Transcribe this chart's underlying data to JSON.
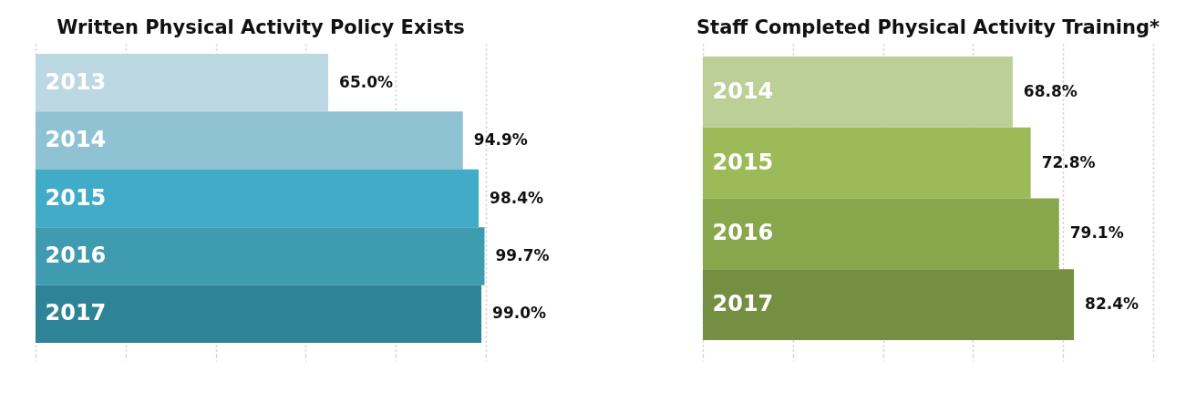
{
  "chart_data": [
    {
      "type": "bar",
      "orientation": "horizontal",
      "title": "Written Physical Activity Policy Exists",
      "categories": [
        "2013",
        "2014",
        "2015",
        "2016",
        "2017"
      ],
      "values": [
        65.0,
        94.9,
        98.4,
        99.7,
        99.0
      ],
      "colors": [
        "#bcd8e3",
        "#8fc3d3",
        "#41abc8",
        "#3f9bb0",
        "#2e8496"
      ],
      "value_labels": [
        "65.0%",
        "94.9%",
        "98.4%",
        "99.7%",
        "99.0%"
      ],
      "xlim": [
        0,
        100
      ],
      "xticks": [
        {
          "value": 0,
          "label": null
        },
        {
          "value": 20,
          "label": null
        },
        {
          "value": 40,
          "label": null
        },
        {
          "value": 60,
          "label": null
        },
        {
          "value": 80,
          "label": null
        },
        {
          "value": 100,
          "label": null
        }
      ],
      "grid": "x",
      "tick_labels": "y"
    },
    {
      "type": "bar",
      "orientation": "horizontal",
      "title": "Staff Completed Physical Activity Training*",
      "categories": [
        "2014",
        "2015",
        "2016",
        "2017"
      ],
      "values": [
        68.8,
        72.8,
        79.1,
        82.4
      ],
      "colors": [
        "#bbcf96",
        "#9cbb58",
        "#88a64c",
        "#748e42"
      ],
      "value_labels": [
        "68.8%",
        "72.8%",
        "79.1%",
        "82.4%"
      ],
      "xlim": [
        0,
        100
      ],
      "xticks": [
        {
          "value": 0,
          "label": null
        },
        {
          "value": 20,
          "label": null
        },
        {
          "value": 40,
          "label": null
        },
        {
          "value": 60,
          "label": null
        },
        {
          "value": 80,
          "label": null
        },
        {
          "value": 100,
          "label": null
        }
      ],
      "grid": "x",
      "tick_labels": "y"
    }
  ]
}
